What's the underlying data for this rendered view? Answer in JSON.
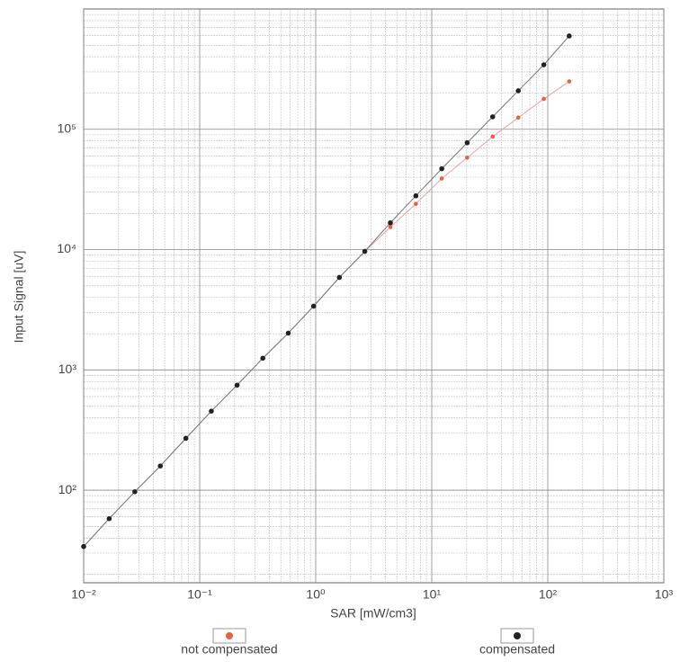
{
  "chart_data": {
    "type": "scatter",
    "x_label": "SAR [mW/cm3]",
    "y_label": "Input Signal [uV]",
    "xscale": "log",
    "yscale": "log",
    "grid": true,
    "xlim": [
      0.01,
      1000
    ],
    "ylim": [
      17,
      1000000
    ],
    "xticks": [
      {
        "value": 0.01,
        "label": "10⁻²"
      },
      {
        "value": 0.1,
        "label": "10⁻¹"
      },
      {
        "value": 1,
        "label": "10⁰"
      },
      {
        "value": 10,
        "label": "10¹"
      },
      {
        "value": 100,
        "label": "10²"
      },
      {
        "value": 1000,
        "label": "10³"
      }
    ],
    "yticks": [
      {
        "value": 100,
        "label": "10²"
      },
      {
        "value": 1000,
        "label": "10³"
      },
      {
        "value": 10000,
        "label": "10⁴"
      },
      {
        "value": 100000,
        "label": "10⁵"
      }
    ],
    "x": [
      0.01,
      0.0166,
      0.0276,
      0.0458,
      0.076,
      0.126,
      0.21,
      0.35,
      0.58,
      0.96,
      1.6,
      2.65,
      4.4,
      7.3,
      12.2,
      20.2,
      33.5,
      55.7,
      92.5,
      153
    ],
    "series": [
      {
        "name": "not compensated",
        "color": "#e8603c",
        "line_color": "#f0a0a8",
        "values": [
          34,
          58,
          97,
          159,
          270,
          454,
          747,
          1250,
          2020,
          3390,
          5870,
          9670,
          15400,
          24000,
          39000,
          58000,
          87000,
          125000,
          179000,
          250000
        ]
      },
      {
        "name": "compensated",
        "color": "#222222",
        "line_color": "#777777",
        "values": [
          34,
          58,
          97,
          159,
          270,
          454,
          747,
          1250,
          2020,
          3390,
          5870,
          9670,
          16700,
          28000,
          47000,
          77300,
          127000,
          209000,
          344000,
          597000
        ]
      }
    ]
  }
}
